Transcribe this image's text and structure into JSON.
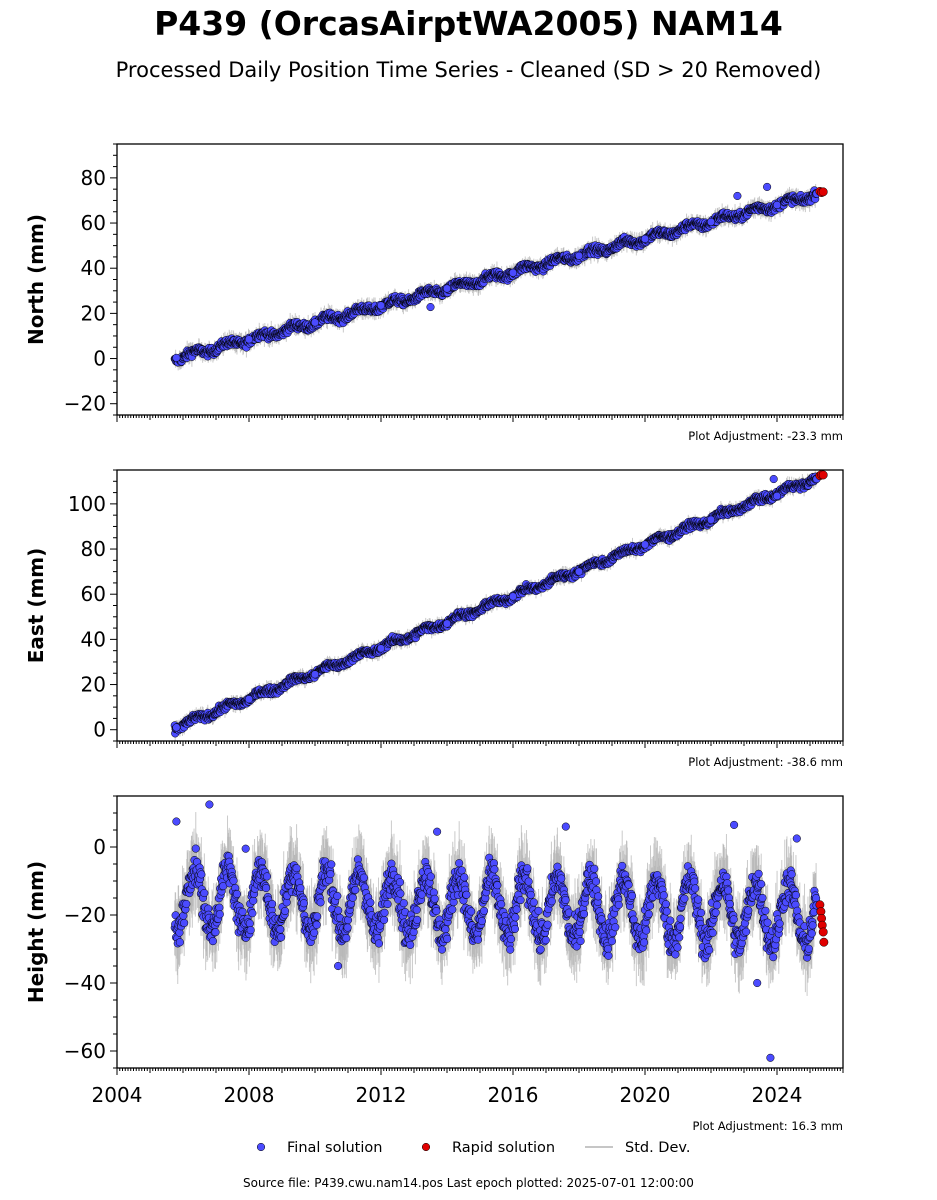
{
  "title": "P439 (OrcasAirptWA2005) NAM14",
  "subtitle": "Processed Daily Position Time Series - Cleaned (SD > 20 Removed)",
  "footer": "Source file: P439.cwu.nam14.pos  Last epoch plotted: 2025-07-01 12:00:00",
  "colors": {
    "final": "#4b4bff",
    "rapid": "#e00000",
    "std": "#b4b4b4",
    "edge": "#000000"
  },
  "legend": {
    "final": "Final solution",
    "rapid": "Rapid solution",
    "std": "Std. Dev.",
    "placement": "bottom-center"
  },
  "chart_data": [
    {
      "type": "scatter",
      "ylabel": "North (mm)",
      "adjustment": "Plot Adjustment: -23.3 mm",
      "xlim": [
        2004.0,
        2026.0
      ],
      "ylim": [
        -25,
        95
      ],
      "yticks": [
        -20,
        0,
        20,
        40,
        60,
        80
      ],
      "xticks": [],
      "start": 2005.75,
      "end_final": 2025.2,
      "trend": {
        "y0": 0,
        "rate": 3.73
      },
      "seasonal": 1.2,
      "noise": 1.2,
      "series": [
        {
          "name": "Final solution",
          "points": [
            [
              2005.8,
              0.3
            ],
            [
              2008.0,
              8.5
            ],
            [
              2010.0,
              16.0
            ],
            [
              2012.0,
              23.5
            ],
            [
              2013.5,
              22.8
            ],
            [
              2014.0,
              31.0
            ],
            [
              2016.0,
              38.0
            ],
            [
              2018.0,
              45.5
            ],
            [
              2020.0,
              53.0
            ],
            [
              2022.0,
              60.5
            ],
            [
              2022.8,
              72.0
            ],
            [
              2023.7,
              76.0
            ],
            [
              2024.0,
              68.0
            ],
            [
              2025.2,
              73.0
            ]
          ]
        },
        {
          "name": "Rapid solution",
          "points": [
            [
              2025.3,
              74.0
            ],
            [
              2025.35,
              73.5
            ],
            [
              2025.4,
              73.8
            ]
          ]
        }
      ]
    },
    {
      "type": "scatter",
      "ylabel": "East (mm)",
      "adjustment": "Plot Adjustment: -38.6 mm",
      "xlim": [
        2004.0,
        2026.0
      ],
      "ylim": [
        -5,
        115
      ],
      "yticks": [
        0,
        20,
        40,
        60,
        80,
        100
      ],
      "xticks": [],
      "start": 2005.75,
      "end_final": 2025.2,
      "trend": {
        "y0": 1,
        "rate": 5.68
      },
      "seasonal": 1.0,
      "noise": 1.0,
      "series": [
        {
          "name": "Final solution",
          "points": [
            [
              2005.8,
              1.0
            ],
            [
              2008.0,
              13.5
            ],
            [
              2010.0,
              24.5
            ],
            [
              2012.0,
              36.0
            ],
            [
              2014.0,
              47.0
            ],
            [
              2016.0,
              59.0
            ],
            [
              2018.0,
              70.0
            ],
            [
              2020.0,
              82.0
            ],
            [
              2022.0,
              93.0
            ],
            [
              2024.0,
              103.5
            ],
            [
              2023.9,
              111.0
            ],
            [
              2025.2,
              111.0
            ]
          ]
        },
        {
          "name": "Rapid solution",
          "points": [
            [
              2025.3,
              112.5
            ],
            [
              2025.35,
              113.0
            ],
            [
              2025.4,
              112.8
            ]
          ]
        }
      ]
    },
    {
      "type": "scatter",
      "ylabel": "Height (mm)",
      "adjustment": "Plot Adjustment: 16.3 mm",
      "xlim": [
        2004.0,
        2026.0
      ],
      "ylim": [
        -65,
        15
      ],
      "yticks": [
        -60,
        -40,
        -20,
        0
      ],
      "xticks": [
        "2004",
        "2008",
        "2012",
        "2016",
        "2020",
        "2024"
      ],
      "start": 2005.75,
      "end_final": 2025.2,
      "trend": {
        "y0": -15,
        "rate": -0.25
      },
      "seasonal": 9.0,
      "noise": 3.5,
      "series": [
        {
          "name": "Final solution",
          "points": [
            [
              2005.8,
              7.5
            ],
            [
              2006.8,
              12.5
            ],
            [
              2007.9,
              -0.5
            ],
            [
              2013.7,
              4.5
            ],
            [
              2017.6,
              6.0
            ],
            [
              2022.7,
              6.5
            ],
            [
              2023.4,
              -40.0
            ],
            [
              2023.8,
              -62.0
            ],
            [
              2024.6,
              2.5
            ],
            [
              2010.7,
              -35.0
            ]
          ]
        },
        {
          "name": "Rapid solution",
          "points": [
            [
              2025.3,
              -17.0
            ],
            [
              2025.33,
              -19.0
            ],
            [
              2025.35,
              -21.0
            ],
            [
              2025.37,
              -23.0
            ],
            [
              2025.4,
              -25.0
            ],
            [
              2025.42,
              -28.0
            ]
          ]
        }
      ]
    }
  ]
}
